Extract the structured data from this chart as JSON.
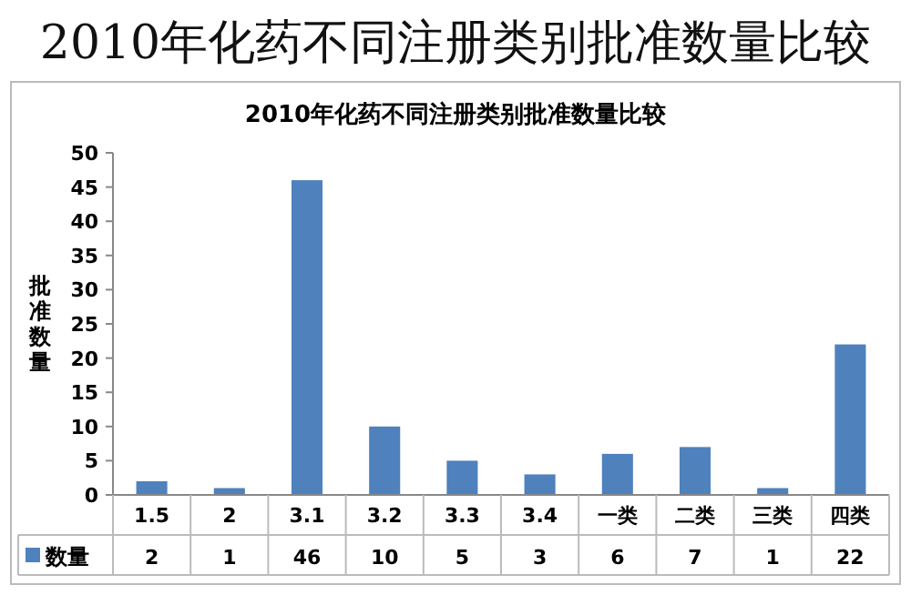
{
  "chart_data": {
    "type": "bar",
    "title": "2010年化药不同注册类别批准数量比较",
    "subtitle": "2010年化药不同注册类别批准数量比较",
    "ylabel": "批准数量",
    "categories": [
      "1.5",
      "2",
      "3.1",
      "3.2",
      "3.3",
      "3.4",
      "一类",
      "二类",
      "三类",
      "四类"
    ],
    "series": [
      {
        "name": "数量",
        "color": "#4f81bd",
        "values": [
          2,
          1,
          46,
          10,
          5,
          3,
          6,
          7,
          1,
          22
        ]
      }
    ],
    "ylim": [
      0,
      50
    ],
    "yticks": [
      0,
      5,
      10,
      15,
      20,
      25,
      30,
      35,
      40,
      45,
      50
    ],
    "data_labels": true,
    "legend": "bottom"
  }
}
